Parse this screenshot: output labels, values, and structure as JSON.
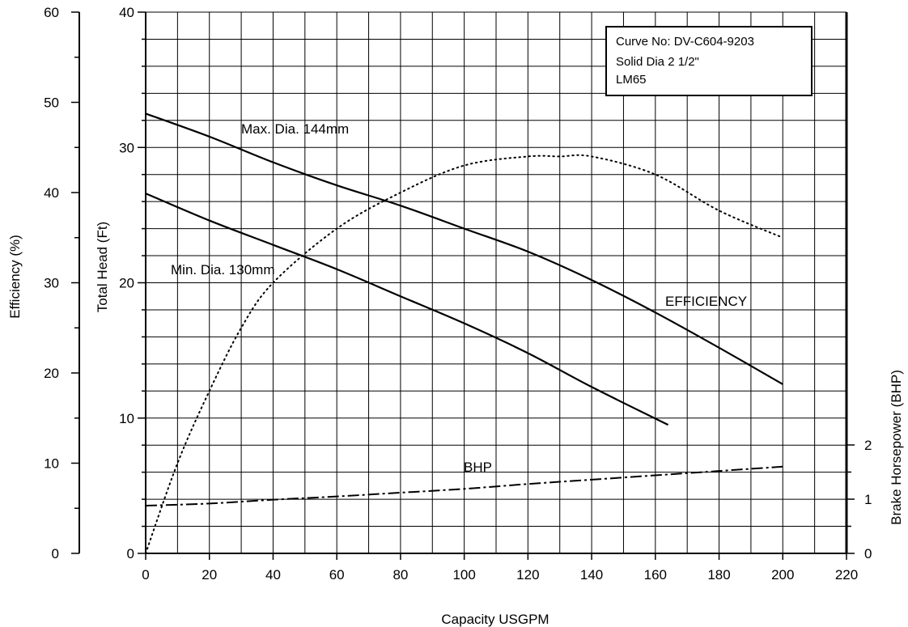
{
  "chart_data": {
    "type": "line",
    "xlabel": "Capacity USGPM",
    "ylabel_head": "Total Head (Ft)",
    "ylabel_efficiency": "Efficiency (%)",
    "ylabel_bhp": "Brake Horsepower (BHP)",
    "xlim": [
      0,
      220
    ],
    "ylim_head": [
      0,
      40
    ],
    "ylim_efficiency": [
      0,
      60
    ],
    "ylim_bhp": [
      0,
      2
    ],
    "grid": true,
    "x_ticks": [
      "0",
      "20",
      "40",
      "60",
      "80",
      "100",
      "120",
      "140",
      "160",
      "180",
      "200",
      "220"
    ],
    "head_ticks": [
      "0",
      "10",
      "20",
      "30",
      "40"
    ],
    "efficiency_ticks": [
      "0",
      "10",
      "20",
      "30",
      "40",
      "50",
      "60"
    ],
    "bhp_ticks": [
      "0",
      "1",
      "2"
    ],
    "info_box": {
      "line1": "Curve No: DV-C604-9203",
      "line2": "Solid Dia 2 1/2\"",
      "line3": "LM65"
    },
    "series": [
      {
        "name": "Max. Dia. 144mm",
        "axis": "head",
        "style": "solid",
        "x": [
          0,
          20,
          40,
          60,
          80,
          100,
          120,
          140,
          160,
          180,
          200
        ],
        "y": [
          32.5,
          30.8,
          28.9,
          27.2,
          25.7,
          24.0,
          22.3,
          20.2,
          17.8,
          15.2,
          12.5
        ]
      },
      {
        "name": "Min. Dia. 130mm",
        "axis": "head",
        "style": "solid",
        "x": [
          0,
          20,
          40,
          60,
          80,
          100,
          120,
          140,
          164
        ],
        "y": [
          26.6,
          24.6,
          22.8,
          21.0,
          19.0,
          17.0,
          14.8,
          12.3,
          9.5
        ]
      },
      {
        "name": "EFFICIENCY",
        "axis": "efficiency",
        "style": "dotted",
        "x": [
          0,
          10,
          20,
          30,
          40,
          60,
          80,
          100,
          120,
          130,
          140,
          160,
          180,
          200
        ],
        "y": [
          0,
          10,
          18,
          25,
          30,
          36,
          40,
          43,
          44,
          44,
          44,
          42,
          38,
          35
        ]
      },
      {
        "name": "BHP",
        "axis": "bhp",
        "style": "dashdot",
        "x": [
          0,
          20,
          40,
          60,
          80,
          100,
          120,
          140,
          160,
          180,
          200
        ],
        "y": [
          0.88,
          0.92,
          0.99,
          1.05,
          1.12,
          1.19,
          1.28,
          1.36,
          1.44,
          1.52,
          1.6
        ]
      }
    ],
    "annotations": [
      {
        "text": "Max. Dia. 144mm",
        "series": "Max. Dia. 144mm"
      },
      {
        "text": "Min. Dia. 130mm",
        "series": "Min. Dia. 130mm"
      },
      {
        "text": "EFFICIENCY",
        "series": "EFFICIENCY"
      },
      {
        "text": "BHP",
        "series": "BHP"
      }
    ]
  }
}
